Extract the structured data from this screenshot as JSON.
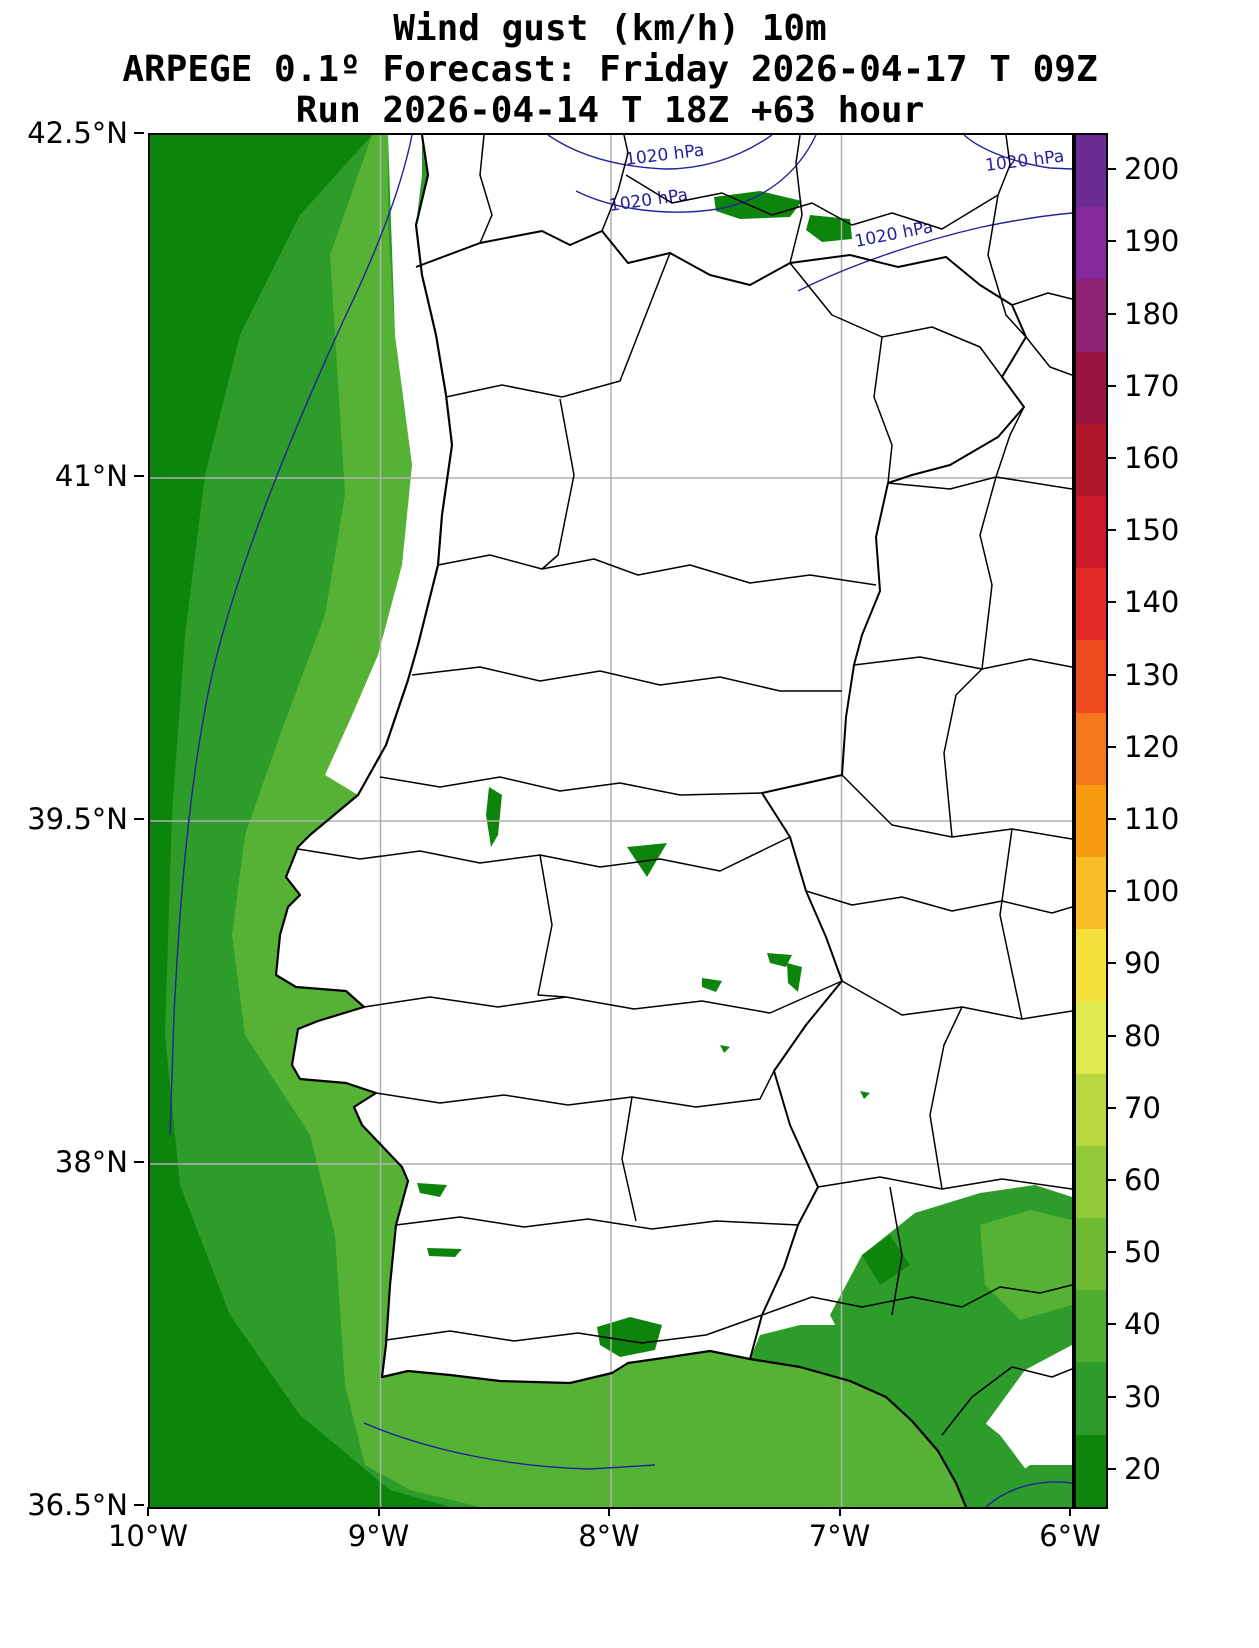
{
  "title": {
    "line1": "Wind gust (km/h) 10m",
    "line2": "ARPEGE 0.1º Forecast: Friday 2026-04-17 T 09Z",
    "line3": "Run 2026-04-14 T 18Z +63 hour"
  },
  "axes": {
    "lat_ticks": [
      "42.5°N",
      "41°N",
      "39.5°N",
      "38°N",
      "36.5°N"
    ],
    "lon_ticks": [
      "10°W",
      "9°W",
      "8°W",
      "7°W",
      "6°W"
    ]
  },
  "isobar": {
    "label": "1020 hPa"
  },
  "colorbar": {
    "ticks_top_to_bottom": [
      "200",
      "190",
      "180",
      "170",
      "160",
      "150",
      "140",
      "130",
      "120",
      "110",
      "100",
      "90",
      "80",
      "70",
      "60",
      "50",
      "40",
      "30",
      "20"
    ],
    "colors_bottom_to_top": [
      "#0d850d",
      "#2d9c2b",
      "#4cad2e",
      "#6eba32",
      "#93c838",
      "#bad742",
      "#e0e94e",
      "#f5e13c",
      "#f9bd27",
      "#f99b10",
      "#f5771b",
      "#ee4b21",
      "#e22a26",
      "#cc1a28",
      "#b0142a",
      "#981441",
      "#8e2172",
      "#86299c",
      "#6a2c92"
    ]
  },
  "colors": {
    "ocean_outer": "#0d850d",
    "ocean_mid": "#2d9c2b",
    "ocean_inner": "#55b234",
    "grid": "#b0b0b0",
    "isobar": "#22229b",
    "boundary": "#000000"
  },
  "chart_data": {
    "type": "heatmap",
    "title": "Wind gust (km/h) 10m",
    "model": "ARPEGE 0.1º",
    "valid_time": "Friday 2026-04-17 T 09Z",
    "run_time": "2026-04-14 T 18Z",
    "lead_hours": 63,
    "lon_ticks_deg_w": [
      10,
      9,
      8,
      7,
      6
    ],
    "lat_ticks_deg_n": [
      42.5,
      41,
      39.5,
      38,
      36.5
    ],
    "colorbar_levels_kmh": [
      20,
      30,
      40,
      50,
      60,
      70,
      80,
      90,
      100,
      110,
      120,
      130,
      140,
      150,
      160,
      170,
      180,
      190,
      200
    ],
    "isobar_value_hpa": 1020,
    "summary": "Wind gusts of 20-50 km/h shade the Atlantic west of the Iberian coast and the Gulf of Cadiz; most inland areas are below 20 km/h (white) with scattered green patches; 1020 hPa isobars cross the northern edge of the map."
  }
}
